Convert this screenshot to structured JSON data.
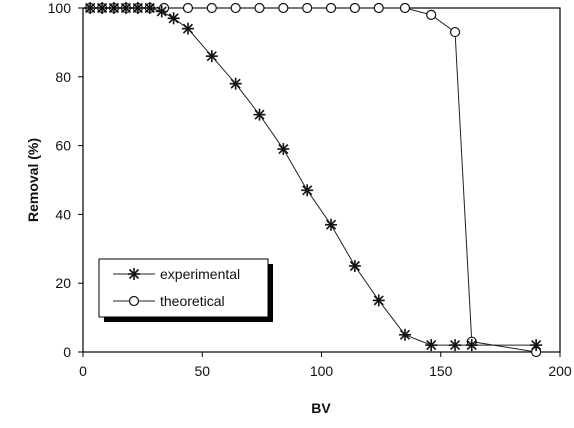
{
  "chart_data": {
    "type": "line",
    "title": "",
    "xlabel": "BV",
    "ylabel": "Removal (%)",
    "xlim": [
      0,
      200
    ],
    "ylim": [
      0,
      100
    ],
    "xticks": [
      0,
      50,
      100,
      150,
      200
    ],
    "yticks": [
      0,
      20,
      40,
      60,
      80,
      100
    ],
    "grid": false,
    "legend_position": "lower-left",
    "series": [
      {
        "name": "experimental",
        "marker": "star",
        "color": "#222222",
        "x": [
          3,
          8,
          13,
          18,
          23,
          28,
          33,
          38,
          44,
          54,
          64,
          74,
          84,
          94,
          104,
          114,
          124,
          135,
          146,
          156,
          163,
          190
        ],
        "y": [
          100,
          100,
          100,
          100,
          100,
          100,
          99,
          97,
          94,
          86,
          78,
          69,
          59,
          47,
          37,
          25,
          15,
          5,
          2,
          2,
          2,
          2
        ]
      },
      {
        "name": "theoretical",
        "marker": "circle",
        "color": "#222222",
        "x": [
          3,
          8,
          13,
          18,
          23,
          28,
          34,
          44,
          54,
          64,
          74,
          84,
          94,
          104,
          114,
          124,
          135,
          146,
          156,
          163,
          190
        ],
        "y": [
          100,
          100,
          100,
          100,
          100,
          100,
          100,
          100,
          100,
          100,
          100,
          100,
          100,
          100,
          100,
          100,
          100,
          98,
          93,
          3,
          0
        ]
      }
    ]
  }
}
